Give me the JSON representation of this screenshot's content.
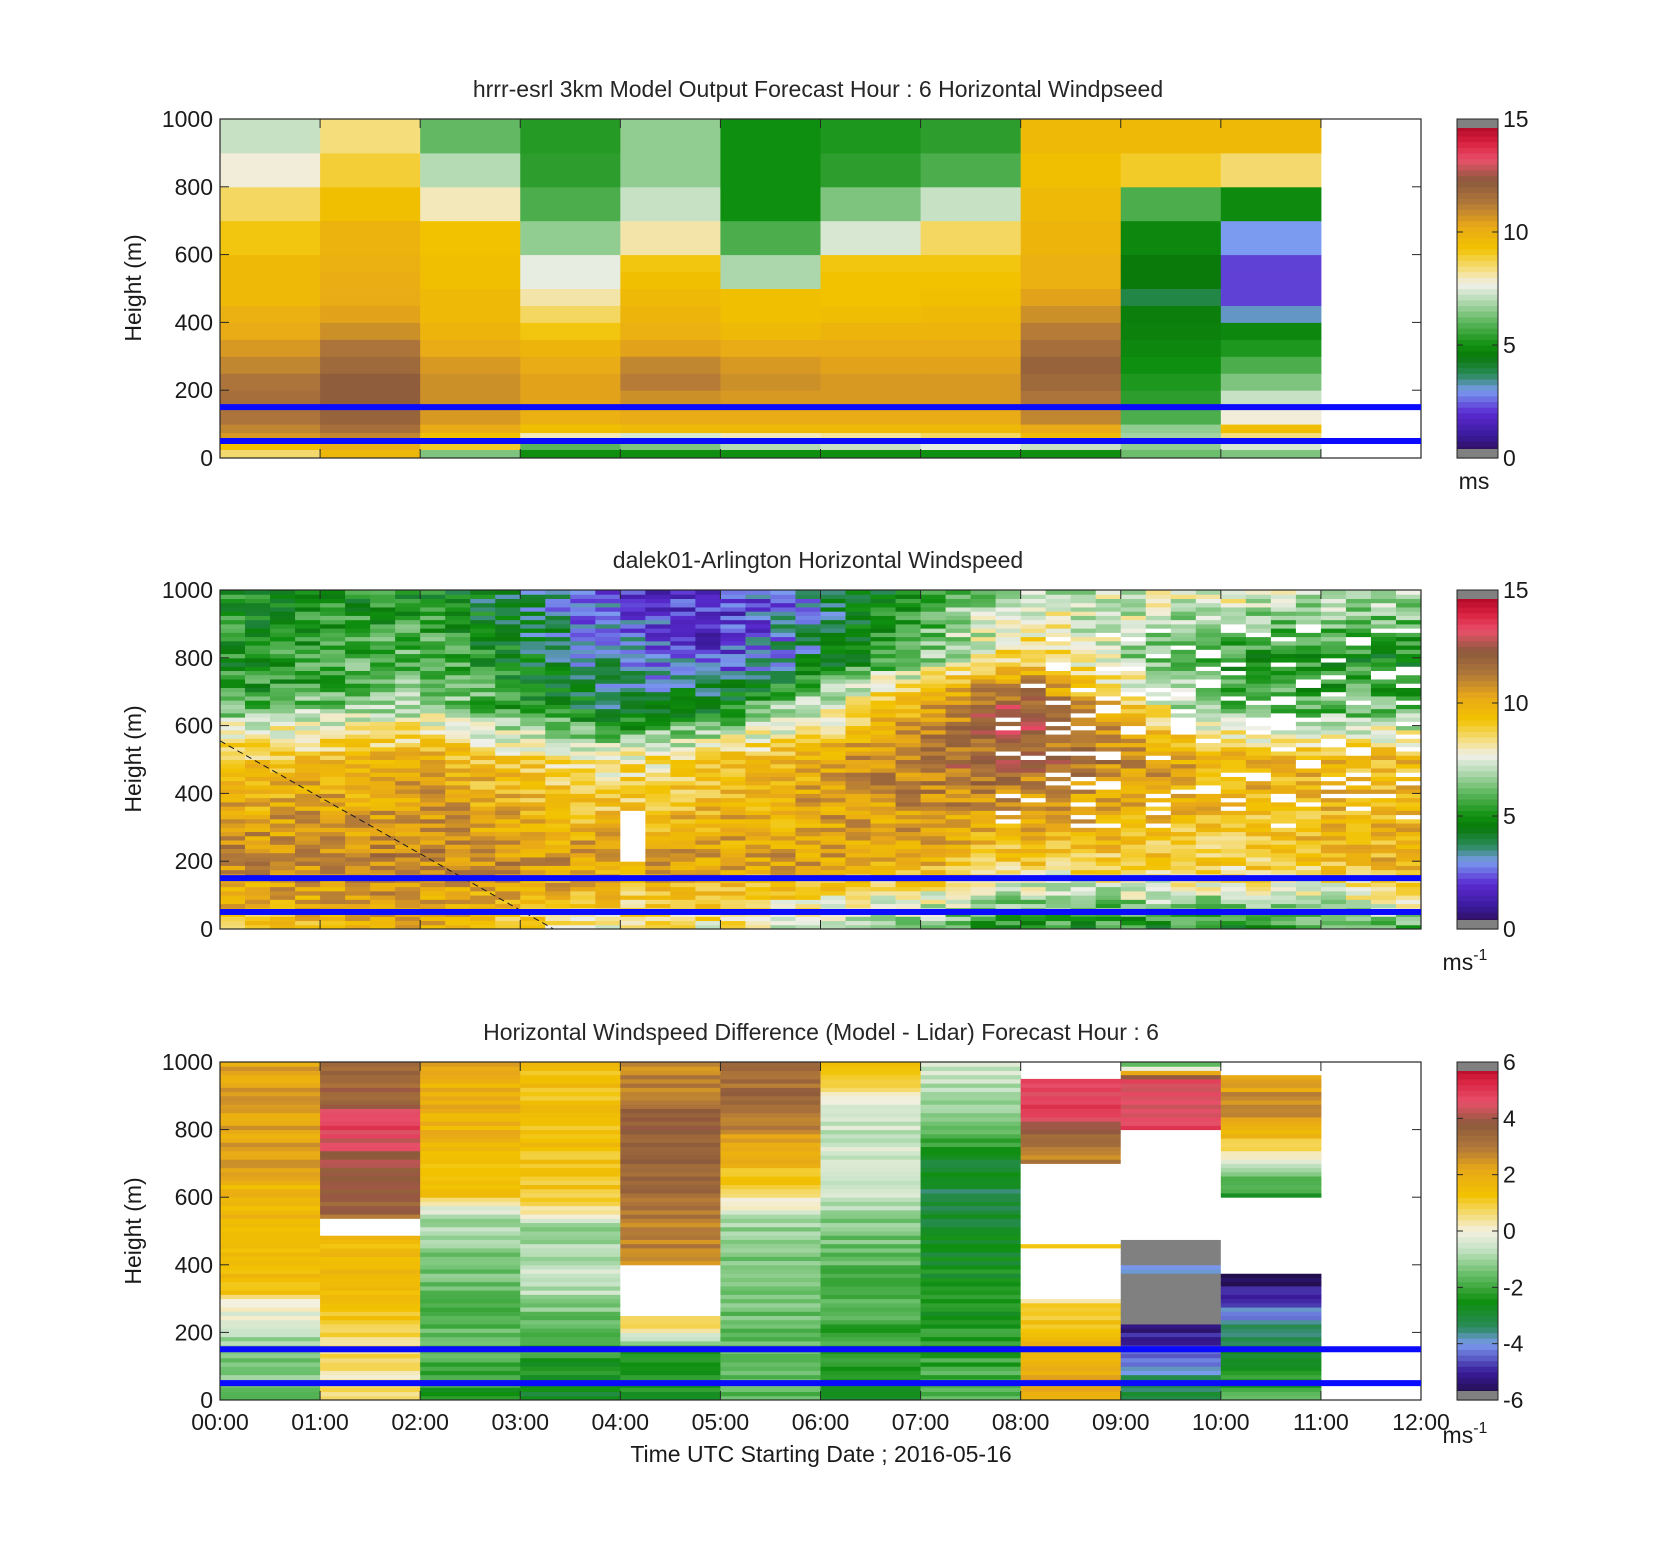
{
  "colors": {
    "guide_line": "#0a0aff",
    "background": "#ffffff",
    "speed_scale": [
      {
        "v": 0,
        "c": "#2a0a3a"
      },
      {
        "v": 1,
        "c": "#3a1a9a"
      },
      {
        "v": 2,
        "c": "#5a2ad0"
      },
      {
        "v": 3,
        "c": "#7a9bef"
      },
      {
        "v": 3.7,
        "c": "#2a8a5a"
      },
      {
        "v": 4.5,
        "c": "#0a7a0a"
      },
      {
        "v": 5,
        "c": "#0f8f0f"
      },
      {
        "v": 6,
        "c": "#5ab55a"
      },
      {
        "v": 7,
        "c": "#b5dbb5"
      },
      {
        "v": 7.7,
        "c": "#f0f0e8"
      },
      {
        "v": 8.3,
        "c": "#f5e08a"
      },
      {
        "v": 9.3,
        "c": "#f2c200"
      },
      {
        "v": 10.3,
        "c": "#e8a818"
      },
      {
        "v": 11.3,
        "c": "#b0773a"
      },
      {
        "v": 12.3,
        "c": "#8c5a3c"
      },
      {
        "v": 13.2,
        "c": "#e8506a"
      },
      {
        "v": 14,
        "c": "#d81f3e"
      },
      {
        "v": 15,
        "c": "#a00020"
      }
    ],
    "diff_scale": [
      {
        "v": -6,
        "c": "#1a0a30"
      },
      {
        "v": -5,
        "c": "#3a1a9a"
      },
      {
        "v": -4,
        "c": "#7a9bef"
      },
      {
        "v": -3.4,
        "c": "#2a8a5a"
      },
      {
        "v": -2.5,
        "c": "#0f8f0f"
      },
      {
        "v": -1.5,
        "c": "#6abf6a"
      },
      {
        "v": -0.6,
        "c": "#c8e4c8"
      },
      {
        "v": 0,
        "c": "#f4f0e0"
      },
      {
        "v": 0.5,
        "c": "#f5e08a"
      },
      {
        "v": 1.3,
        "c": "#f2c200"
      },
      {
        "v": 2.2,
        "c": "#e8a818"
      },
      {
        "v": 3,
        "c": "#b0773a"
      },
      {
        "v": 3.8,
        "c": "#8c5a3c"
      },
      {
        "v": 4.6,
        "c": "#e8506a"
      },
      {
        "v": 5.4,
        "c": "#d81f3e"
      },
      {
        "v": 6,
        "c": "#a00020"
      }
    ]
  },
  "chart_data": [
    {
      "type": "heatmap",
      "title": "hrrr-esrl 3km Model Output   Forecast Hour : 6 Horizontal Windpseed",
      "ylabel": "Height (m)",
      "xlabel": "",
      "xlim": [
        "00:00",
        "12:00"
      ],
      "ylim": [
        0,
        1000
      ],
      "yticks": [
        "0",
        "200",
        "400",
        "600",
        "800",
        "1000"
      ],
      "colorbar": {
        "min": 0,
        "max": 15,
        "ticks": [
          "0",
          "5",
          "10",
          "15"
        ],
        "unit": "ms"
      },
      "reference_heights_m": [
        150,
        50
      ],
      "time_bins_h": [
        0,
        1,
        2,
        3,
        4,
        5,
        6,
        7,
        8,
        9,
        10,
        11
      ],
      "height_bins_m": [
        0,
        25,
        50,
        75,
        100,
        150,
        200,
        250,
        300,
        350,
        400,
        450,
        500,
        550,
        600,
        700,
        800,
        900,
        1000
      ],
      "values": [
        [
          8.5,
          9.3,
          10.6,
          11.0,
          11.4,
          11.6,
          11.4,
          11.0,
          10.6,
          10.2,
          10.0,
          9.6,
          9.6,
          9.6,
          9.2,
          8.6,
          7.8,
          7.2
        ],
        [
          9.7,
          10.1,
          11.0,
          11.6,
          12.0,
          12.2,
          12.2,
          11.8,
          11.4,
          10.8,
          10.4,
          10.2,
          10.1,
          10.0,
          9.9,
          9.4,
          8.9,
          8.4
        ],
        [
          6.4,
          9.0,
          9.4,
          10.2,
          10.6,
          10.8,
          10.8,
          10.6,
          10.2,
          9.8,
          9.6,
          9.6,
          9.4,
          9.4,
          9.3,
          8.0,
          7.0,
          6.1
        ],
        [
          5.0,
          6.0,
          8.0,
          9.4,
          10.0,
          10.4,
          10.4,
          10.2,
          9.8,
          9.2,
          8.6,
          8.1,
          7.6,
          7.6,
          6.6,
          5.8,
          5.4,
          5.3
        ],
        [
          5.0,
          6.4,
          7.4,
          9.6,
          10.2,
          10.8,
          11.2,
          11.0,
          10.4,
          10.0,
          9.8,
          9.6,
          9.4,
          9.2,
          8.1,
          7.2,
          6.6,
          6.6
        ],
        [
          5.0,
          7.0,
          8.0,
          9.6,
          10.2,
          10.6,
          10.8,
          10.6,
          10.2,
          9.6,
          9.4,
          9.4,
          6.9,
          6.9,
          5.8,
          5.0,
          5.0,
          5.0
        ],
        [
          5.0,
          7.2,
          8.2,
          9.6,
          10.2,
          10.6,
          10.6,
          10.4,
          10.2,
          9.8,
          9.5,
          9.3,
          9.3,
          9.2,
          7.4,
          6.4,
          5.4,
          5.2
        ],
        [
          5.0,
          7.6,
          8.6,
          9.6,
          10.2,
          10.6,
          10.6,
          10.4,
          10.2,
          9.8,
          9.6,
          9.4,
          9.3,
          9.2,
          8.6,
          7.2,
          5.8,
          5.4
        ],
        [
          5.0,
          7.2,
          9.6,
          10.2,
          11.0,
          11.4,
          11.8,
          12.0,
          11.6,
          11.2,
          10.8,
          10.4,
          10.0,
          10.0,
          9.8,
          9.6,
          9.4,
          9.6
        ],
        [
          6.2,
          6.6,
          6.8,
          6.6,
          5.8,
          5.4,
          5.2,
          5.0,
          4.8,
          4.7,
          4.6,
          3.9,
          4.5,
          4.5,
          4.8,
          5.8,
          9.0,
          9.6
        ],
        [
          6.4,
          7.4,
          8.4,
          9.4,
          7.8,
          7.2,
          6.4,
          5.8,
          5.2,
          4.8,
          3.2,
          2.2,
          2.2,
          2.2,
          3.0,
          4.9,
          8.5,
          9.6
        ]
      ]
    },
    {
      "type": "heatmap",
      "title": "dalek01-Arlington  Horizontal Windspeed",
      "ylabel": "Height (m)",
      "xlabel": "",
      "xlim": [
        "00:00",
        "12:00"
      ],
      "ylim": [
        0,
        1000
      ],
      "yticks": [
        "0",
        "200",
        "400",
        "600",
        "800",
        "1000"
      ],
      "colorbar": {
        "min": 0,
        "max": 15,
        "ticks": [
          "0",
          "5",
          "10",
          "15"
        ],
        "unit": "ms-1"
      },
      "reference_heights_m": [
        150,
        50
      ],
      "profile_columns": 48,
      "representative_profiles": [
        {
          "time_h": 0,
          "speed_by_height": [
            [
              0,
              9
            ],
            [
              200,
              11
            ],
            [
              450,
              9.5
            ],
            [
              600,
              7.5
            ],
            [
              700,
              5
            ],
            [
              1000,
              5
            ]
          ]
        },
        {
          "time_h": 2,
          "speed_by_height": [
            [
              0,
              10
            ],
            [
              200,
              11
            ],
            [
              500,
              10
            ],
            [
              650,
              7
            ],
            [
              1000,
              5
            ]
          ]
        },
        {
          "time_h": 4,
          "speed_by_height": [
            [
              0,
              8
            ],
            [
              200,
              10.5
            ],
            [
              500,
              8
            ],
            [
              650,
              4
            ],
            [
              800,
              3
            ],
            [
              1000,
              2
            ]
          ]
        },
        {
          "time_h": 5,
          "speed_by_height": [
            [
              0,
              8
            ],
            [
              200,
              10.5
            ],
            [
              500,
              9
            ],
            [
              650,
              5
            ],
            [
              800,
              2
            ],
            [
              1000,
              1.5
            ]
          ]
        },
        {
          "time_h": 7,
          "speed_by_height": [
            [
              0,
              6
            ],
            [
              200,
              10
            ],
            [
              500,
              11.5
            ],
            [
              700,
              9.5
            ],
            [
              800,
              6
            ],
            [
              1000,
              5.5
            ]
          ]
        },
        {
          "time_h": 8,
          "speed_by_height": [
            [
              0,
              5
            ],
            [
              200,
              9
            ],
            [
              500,
              12
            ],
            [
              650,
              13
            ],
            [
              800,
              9
            ],
            [
              1000,
              7
            ]
          ]
        },
        {
          "time_h": 10,
          "speed_by_height": [
            [
              0,
              5
            ],
            [
              200,
              9
            ],
            [
              500,
              10
            ],
            [
              650,
              6
            ],
            [
              800,
              5
            ],
            [
              1000,
              8
            ]
          ]
        },
        {
          "time_h": 12,
          "speed_by_height": [
            [
              0,
              6
            ],
            [
              200,
              10
            ],
            [
              500,
              9.5
            ],
            [
              650,
              6
            ],
            [
              800,
              5
            ],
            [
              1000,
              7
            ]
          ]
        }
      ],
      "dashed_line": {
        "from": {
          "time": "00:00",
          "height_m": 555
        },
        "to": {
          "time": "03:20",
          "height_m": 0
        }
      }
    },
    {
      "type": "heatmap",
      "title": "Horizontal Windspeed Difference (Model - Lidar) Forecast Hour : 6",
      "ylabel": "Height (m)",
      "xlabel": "Time UTC  Starting Date ; 2016-05-16",
      "xlim": [
        "00:00",
        "12:00"
      ],
      "xticks": [
        "00:00",
        "01:00",
        "02:00",
        "03:00",
        "04:00",
        "05:00",
        "06:00",
        "07:00",
        "08:00",
        "09:00",
        "10:00",
        "11:00",
        "12:00"
      ],
      "ylim": [
        0,
        1000
      ],
      "yticks": [
        "0",
        "200",
        "400",
        "600",
        "800",
        "1000"
      ],
      "colorbar": {
        "min": -6,
        "max": 6,
        "ticks": [
          "-6",
          "-4",
          "-2",
          "0",
          "2",
          "4",
          "6"
        ],
        "unit": "ms-1"
      },
      "reference_heights_m": [
        150,
        50
      ],
      "column_profiles": [
        {
          "time_h": 0,
          "diff_by_height": [
            [
              0,
              -1.5
            ],
            [
              150,
              -1.2
            ],
            [
              300,
              0.2
            ],
            [
              320,
              1.3
            ],
            [
              600,
              1.6
            ],
            [
              700,
              2.2
            ],
            [
              1000,
              2.2
            ]
          ]
        },
        {
          "time_h": 1,
          "diff_by_height": [
            [
              0,
              0.4
            ],
            [
              150,
              0.6
            ],
            [
              300,
              1.5
            ],
            [
              500,
              1.5
            ],
            [
              550,
              3.6
            ],
            [
              700,
              3.8
            ],
            [
              800,
              4.8
            ],
            [
              900,
              3.6
            ],
            [
              1000,
              3.4
            ]
          ]
        },
        {
          "time_h": 2,
          "diff_by_height": [
            [
              0,
              -2.5
            ],
            [
              150,
              -1.8
            ],
            [
              400,
              -1.4
            ],
            [
              550,
              -0.8
            ],
            [
              600,
              1.3
            ],
            [
              800,
              1.8
            ],
            [
              1000,
              2.0
            ]
          ]
        },
        {
          "time_h": 3,
          "diff_by_height": [
            [
              0,
              -3.0
            ],
            [
              150,
              -2.2
            ],
            [
              250,
              -1.6
            ],
            [
              350,
              -0.4
            ],
            [
              500,
              -1.2
            ],
            [
              600,
              1.2
            ],
            [
              800,
              1.4
            ],
            [
              1000,
              1.4
            ]
          ]
        },
        {
          "time_h": 4,
          "diff_by_height": [
            [
              0,
              -2.6
            ],
            [
              150,
              -2.0
            ],
            [
              230,
              1.0
            ],
            [
              400,
              2.6
            ],
            [
              700,
              3.4
            ],
            [
              800,
              3.8
            ],
            [
              1000,
              2.4
            ]
          ]
        },
        {
          "time_h": 5,
          "diff_by_height": [
            [
              0,
              -1.8
            ],
            [
              150,
              -1.6
            ],
            [
              500,
              -1.2
            ],
            [
              550,
              -0.4
            ],
            [
              620,
              0.8
            ],
            [
              750,
              2.2
            ],
            [
              900,
              3.4
            ],
            [
              1000,
              3.0
            ]
          ]
        },
        {
          "time_h": 6,
          "diff_by_height": [
            [
              0,
              -2.4
            ],
            [
              150,
              -2.2
            ],
            [
              500,
              -1.4
            ],
            [
              600,
              -0.6
            ],
            [
              700,
              -0.4
            ],
            [
              850,
              -0.6
            ],
            [
              920,
              0.6
            ],
            [
              1000,
              1.2
            ]
          ]
        },
        {
          "time_h": 7,
          "diff_by_height": [
            [
              0,
              -1.6
            ],
            [
              150,
              -2.2
            ],
            [
              400,
              -2.6
            ],
            [
              600,
              -3.2
            ],
            [
              700,
              -2.8
            ],
            [
              800,
              -1.8
            ],
            [
              950,
              -0.6
            ],
            [
              1000,
              -0.4
            ]
          ]
        },
        {
          "time_h": 8,
          "diff_by_height": [
            [
              0,
              2.2
            ],
            [
              150,
              1.8
            ],
            [
              300,
              0.6
            ],
            [
              450,
              1.4
            ],
            [
              720,
              2.8
            ],
            [
              850,
              4.6
            ],
            [
              950,
              5.2
            ]
          ]
        },
        {
          "time_h": 9,
          "diff_by_height": [
            [
              0,
              -2.8
            ],
            [
              150,
              -4.6
            ],
            [
              220,
              -5.4
            ],
            [
              400,
              -4.0
            ],
            [
              800,
              4.6
            ],
            [
              950,
              4.8
            ],
            [
              1000,
              -2.6
            ]
          ]
        },
        {
          "time_h": 10,
          "diff_by_height": [
            [
              0,
              -1.8
            ],
            [
              150,
              -3.0
            ],
            [
              250,
              -4.0
            ],
            [
              370,
              -5.6
            ],
            [
              600,
              -2.6
            ],
            [
              700,
              -0.6
            ],
            [
              800,
              2.2
            ],
            [
              900,
              2.6
            ],
            [
              1000,
              1.4
            ]
          ]
        }
      ]
    }
  ]
}
